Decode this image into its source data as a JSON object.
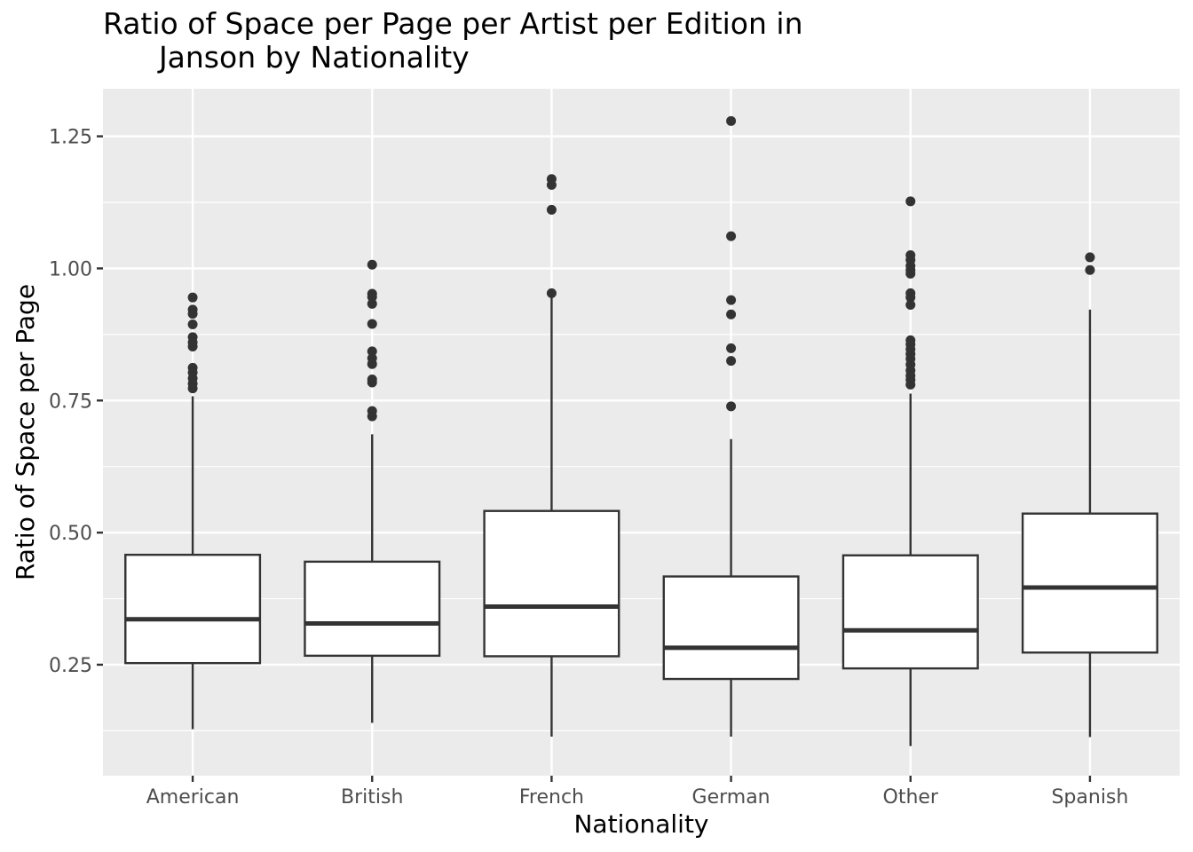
{
  "chart_data": {
    "type": "box",
    "title": "Ratio of Space per Page per Artist per Edition in\n      Janson by Nationality",
    "xlabel": "Nationality",
    "ylabel": "Ratio of Space per Page",
    "categories": [
      "American",
      "British",
      "French",
      "German",
      "Other",
      "Spanish"
    ],
    "ylim": [
      0.04,
      1.34
    ],
    "yticks": [
      0.25,
      0.5,
      0.75,
      1.0,
      1.25
    ],
    "ytick_labels": [
      "0.25",
      "0.50",
      "0.75",
      "1.00",
      "1.25"
    ],
    "grid": true,
    "legend": "none",
    "boxes": [
      {
        "category": "American",
        "whisker_low": 0.128,
        "q1": 0.253,
        "median": 0.336,
        "q3": 0.458,
        "whisker_high": 0.758,
        "outliers": [
          0.945,
          0.922,
          0.914,
          0.894,
          0.87,
          0.86,
          0.852,
          0.812,
          0.803,
          0.792,
          0.782,
          0.773
        ]
      },
      {
        "category": "British",
        "whisker_low": 0.14,
        "q1": 0.267,
        "median": 0.328,
        "q3": 0.445,
        "whisker_high": 0.686,
        "outliers": [
          1.007,
          0.952,
          0.946,
          0.933,
          0.895,
          0.843,
          0.83,
          0.819,
          0.79,
          0.784,
          0.73,
          0.72
        ]
      },
      {
        "category": "French",
        "whisker_low": 0.114,
        "q1": 0.266,
        "median": 0.36,
        "q3": 0.541,
        "whisker_high": 0.95,
        "outliers": [
          1.169,
          1.158,
          1.111,
          0.953
        ]
      },
      {
        "category": "German",
        "whisker_low": 0.114,
        "q1": 0.223,
        "median": 0.282,
        "q3": 0.417,
        "whisker_high": 0.677,
        "outliers": [
          1.279,
          1.061,
          0.94,
          0.913,
          0.849,
          0.825,
          0.739
        ]
      },
      {
        "category": "Other",
        "whisker_low": 0.096,
        "q1": 0.243,
        "median": 0.315,
        "q3": 0.457,
        "whisker_high": 0.763,
        "outliers": [
          1.127,
          1.025,
          1.016,
          1.005,
          0.997,
          0.99,
          0.953,
          0.945,
          0.931,
          0.864,
          0.856,
          0.847,
          0.838,
          0.829,
          0.818,
          0.807,
          0.797,
          0.789,
          0.78
        ]
      },
      {
        "category": "Spanish",
        "whisker_low": 0.113,
        "q1": 0.273,
        "median": 0.396,
        "q3": 0.536,
        "whisker_high": 0.922,
        "outliers": [
          1.021,
          0.997
        ]
      }
    ]
  },
  "colors": {
    "panel_bg": "#ebebeb",
    "grid_major": "#ffffff",
    "box_fill": "#ffffff",
    "box_stroke": "#333333",
    "outlier": "#333333",
    "tick_text": "#4d4d4d"
  }
}
